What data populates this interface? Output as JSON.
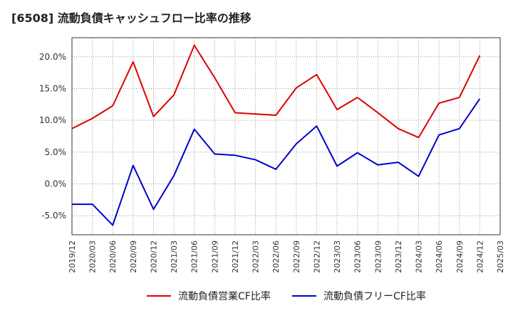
{
  "chart_data": {
    "type": "line",
    "title": "[6508]  流動負債キャッシュフロー比率の推移",
    "x": [
      "2019/12",
      "2020/03",
      "2020/06",
      "2020/09",
      "2020/12",
      "2021/03",
      "2021/06",
      "2021/09",
      "2021/12",
      "2022/03",
      "2022/06",
      "2022/09",
      "2022/12",
      "2023/03",
      "2023/06",
      "2023/09",
      "2023/12",
      "2024/03",
      "2024/06",
      "2024/09",
      "2024/12",
      "2025/03"
    ],
    "y_ticks": [
      "-5.0%",
      "0.0%",
      "5.0%",
      "10.0%",
      "15.0%",
      "20.0%"
    ],
    "ylim": [
      -8,
      23
    ],
    "grid": true,
    "legend_position": "bottom",
    "series": [
      {
        "name": "流動負債営業CF比率",
        "color": "#dd0000",
        "values": [
          8.7,
          10.3,
          12.3,
          19.2,
          10.6,
          14.0,
          21.8,
          16.7,
          11.2,
          11.0,
          10.8,
          15.1,
          17.2,
          11.7,
          13.6,
          11.2,
          8.7,
          7.3,
          12.7,
          13.6,
          20.2,
          null
        ]
      },
      {
        "name": "流動負債フリーCF比率",
        "color": "#0000cc",
        "values": [
          -3.2,
          -3.2,
          -6.5,
          2.9,
          -4.0,
          1.3,
          8.6,
          4.7,
          4.5,
          3.8,
          2.3,
          6.3,
          9.1,
          2.8,
          4.9,
          3.0,
          3.4,
          1.2,
          7.7,
          8.7,
          13.4,
          null
        ]
      }
    ]
  }
}
